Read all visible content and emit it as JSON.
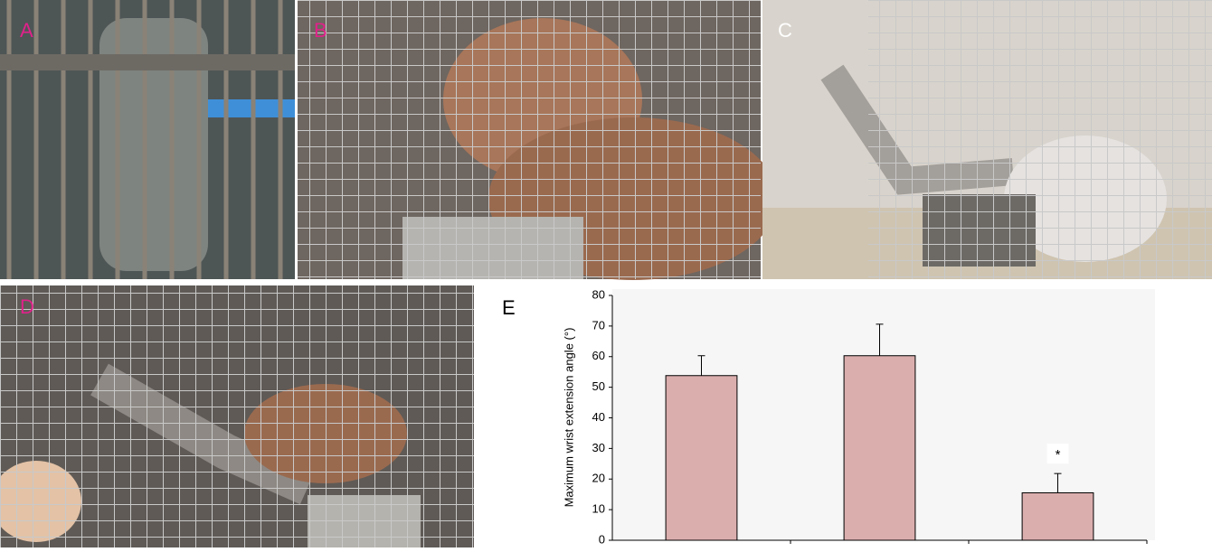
{
  "panels": [
    {
      "label": "A"
    },
    {
      "label": "B"
    },
    {
      "label": "C"
    },
    {
      "label": "D"
    },
    {
      "label": "E"
    }
  ],
  "chart_data": {
    "type": "bar",
    "ylabel": "Maximum wrist extension angle (°)",
    "categories": [
      null,
      null,
      null
    ],
    "values": [
      53.8,
      60.3,
      15.5
    ],
    "errors": [
      6.5,
      10.3,
      6.3
    ],
    "color": "#dbaeae",
    "ylim": [
      0,
      80
    ],
    "yticks": [
      0,
      10,
      20,
      30,
      40,
      50,
      60,
      70,
      80
    ],
    "annotation": "*"
  }
}
